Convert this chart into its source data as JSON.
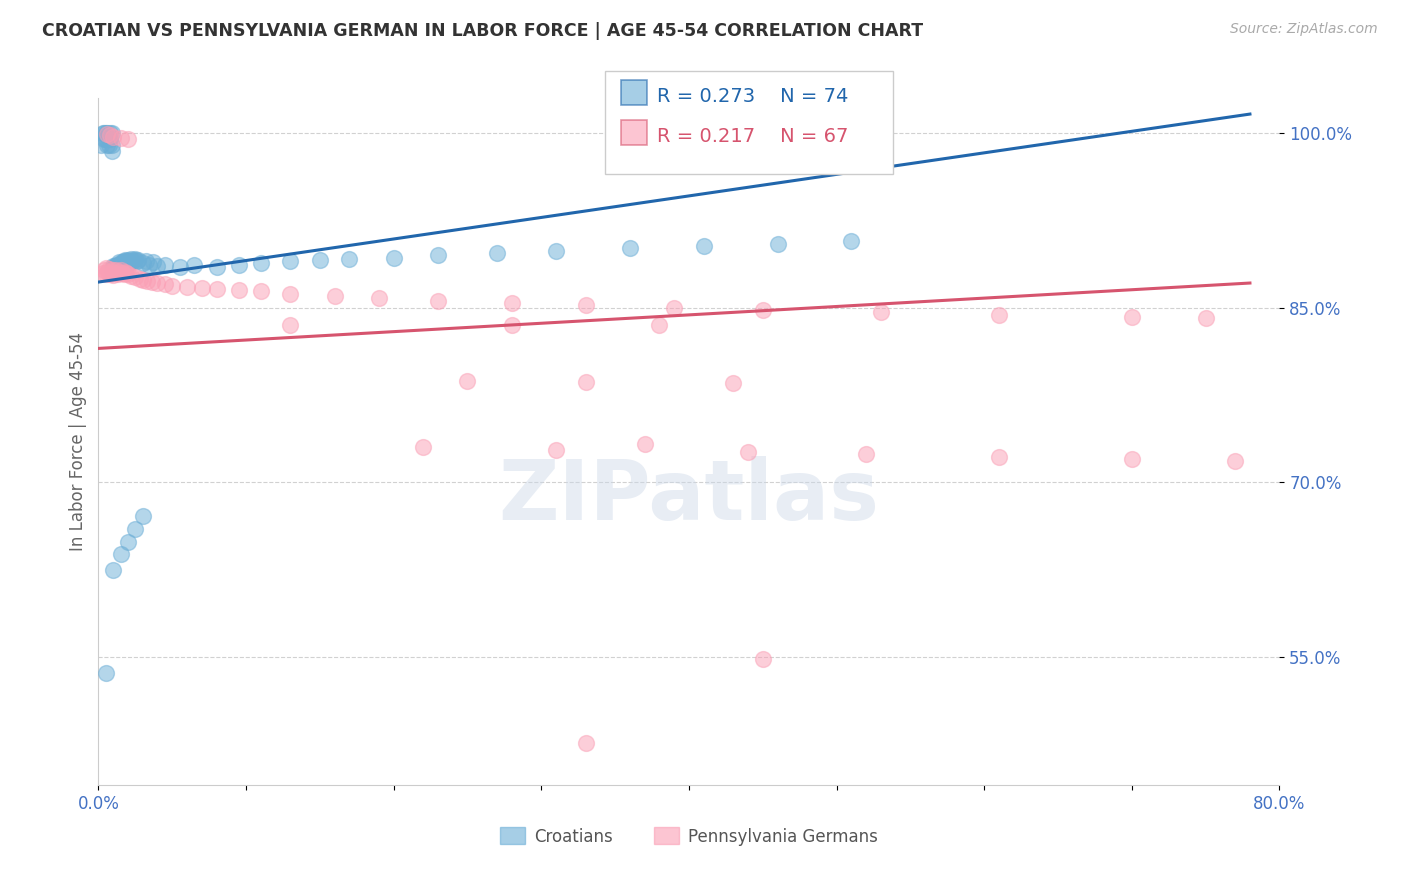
{
  "title": "CROATIAN VS PENNSYLVANIA GERMAN IN LABOR FORCE | AGE 45-54 CORRELATION CHART",
  "source": "Source: ZipAtlas.com",
  "ylabel": "In Labor Force | Age 45-54",
  "xlim": [
    0.0,
    0.8
  ],
  "ylim": [
    0.44,
    1.03
  ],
  "xticks": [
    0.0,
    0.1,
    0.2,
    0.3,
    0.4,
    0.5,
    0.6,
    0.7,
    0.8
  ],
  "xticklabels": [
    "0.0%",
    "",
    "",
    "",
    "",
    "",
    "",
    "",
    "80.0%"
  ],
  "yticks": [
    0.55,
    0.7,
    0.85,
    1.0
  ],
  "yticklabels": [
    "55.0%",
    "70.0%",
    "85.0%",
    "100.0%"
  ],
  "legend_blue_r": "R = 0.273",
  "legend_blue_n": "N = 74",
  "legend_pink_r": "R = 0.217",
  "legend_pink_n": "N = 67",
  "legend_label_blue": "Croatians",
  "legend_label_pink": "Pennsylvania Germans",
  "blue_color": "#6baed6",
  "pink_color": "#fa9fb5",
  "blue_line_color": "#2166ac",
  "pink_line_color": "#d6546e",
  "background_color": "#ffffff",
  "grid_color": "#cccccc",
  "title_color": "#333333",
  "axis_label_color": "#4472c4",
  "ylabel_color": "#666666",
  "blue_line_slope": 0.185,
  "blue_line_intercept": 0.872,
  "pink_line_slope": 0.072,
  "pink_line_intercept": 0.815,
  "blue_x": [
    0.002,
    0.003,
    0.004,
    0.004,
    0.005,
    0.005,
    0.006,
    0.006,
    0.007,
    0.007,
    0.008,
    0.008,
    0.009,
    0.009,
    0.009,
    0.01,
    0.01,
    0.01,
    0.01,
    0.011,
    0.011,
    0.012,
    0.012,
    0.012,
    0.013,
    0.013,
    0.014,
    0.014,
    0.015,
    0.015,
    0.016,
    0.016,
    0.017,
    0.017,
    0.018,
    0.018,
    0.019,
    0.02,
    0.02,
    0.021,
    0.022,
    0.023,
    0.024,
    0.025,
    0.026,
    0.027,
    0.03,
    0.032,
    0.034,
    0.037,
    0.04,
    0.045,
    0.055,
    0.065,
    0.08,
    0.095,
    0.11,
    0.13,
    0.15,
    0.17,
    0.2,
    0.23,
    0.27,
    0.31,
    0.36,
    0.41,
    0.46,
    0.51,
    0.005,
    0.01,
    0.015,
    0.02,
    0.025,
    0.03
  ],
  "blue_y": [
    0.99,
    1.0,
    0.995,
    1.0,
    1.0,
    0.995,
    1.0,
    0.99,
    0.995,
    0.99,
    1.0,
    0.995,
    1.0,
    0.99,
    0.985,
    0.88,
    0.882,
    0.884,
    0.886,
    0.885,
    0.886,
    0.883,
    0.885,
    0.887,
    0.884,
    0.886,
    0.887,
    0.889,
    0.886,
    0.888,
    0.887,
    0.889,
    0.888,
    0.89,
    0.889,
    0.891,
    0.89,
    0.888,
    0.891,
    0.889,
    0.892,
    0.89,
    0.891,
    0.892,
    0.89,
    0.891,
    0.888,
    0.89,
    0.887,
    0.889,
    0.886,
    0.887,
    0.885,
    0.887,
    0.885,
    0.887,
    0.888,
    0.89,
    0.891,
    0.892,
    0.893,
    0.895,
    0.897,
    0.899,
    0.901,
    0.903,
    0.905,
    0.907,
    0.536,
    0.625,
    0.638,
    0.649,
    0.66,
    0.671
  ],
  "pink_x": [
    0.003,
    0.004,
    0.005,
    0.005,
    0.006,
    0.007,
    0.008,
    0.009,
    0.01,
    0.01,
    0.011,
    0.012,
    0.013,
    0.014,
    0.015,
    0.016,
    0.017,
    0.018,
    0.019,
    0.02,
    0.022,
    0.025,
    0.028,
    0.03,
    0.033,
    0.036,
    0.04,
    0.045,
    0.05,
    0.06,
    0.07,
    0.08,
    0.095,
    0.11,
    0.13,
    0.16,
    0.19,
    0.23,
    0.28,
    0.33,
    0.39,
    0.45,
    0.53,
    0.61,
    0.7,
    0.75,
    0.006,
    0.008,
    0.01,
    0.015,
    0.02,
    0.13,
    0.28,
    0.38,
    0.25,
    0.33,
    0.43,
    0.37,
    0.22,
    0.31,
    0.44,
    0.52,
    0.61,
    0.7,
    0.77,
    0.33,
    0.45
  ],
  "pink_y": [
    0.88,
    0.882,
    0.884,
    0.879,
    0.881,
    0.883,
    0.879,
    0.881,
    0.882,
    0.878,
    0.88,
    0.882,
    0.879,
    0.881,
    0.882,
    0.88,
    0.879,
    0.881,
    0.88,
    0.879,
    0.877,
    0.876,
    0.875,
    0.874,
    0.873,
    0.872,
    0.871,
    0.87,
    0.869,
    0.868,
    0.867,
    0.866,
    0.865,
    0.864,
    0.862,
    0.86,
    0.858,
    0.856,
    0.854,
    0.852,
    0.85,
    0.848,
    0.846,
    0.844,
    0.842,
    0.841,
    0.999,
    0.998,
    0.997,
    0.996,
    0.995,
    0.835,
    0.835,
    0.835,
    0.787,
    0.786,
    0.785,
    0.733,
    0.73,
    0.728,
    0.726,
    0.724,
    0.722,
    0.72,
    0.718,
    0.476,
    0.548
  ]
}
